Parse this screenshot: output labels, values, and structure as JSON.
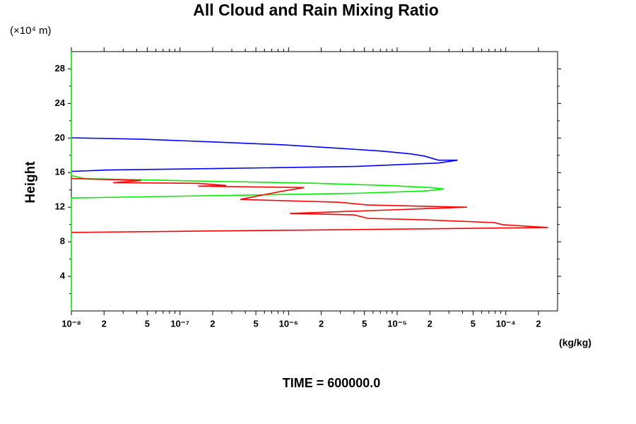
{
  "chart_data": {
    "type": "profile",
    "title": "All Cloud and Rain Mixing Ratio",
    "y_unit": "(×10⁴ m)",
    "ylabel": "Height",
    "x_unit": "(kg/kg)",
    "footer": "TIME = 600000.0",
    "xscale": "log",
    "xlim": [
      1e-08,
      0.0003
    ],
    "ylim": [
      0,
      30
    ],
    "xticks": [
      {
        "value": 1e-08,
        "label": "10⁻⁸"
      },
      {
        "value": 2e-08,
        "label": "2"
      },
      {
        "value": 5e-08,
        "label": "5"
      },
      {
        "value": 1e-07,
        "label": "10⁻⁷"
      },
      {
        "value": 2e-07,
        "label": "2"
      },
      {
        "value": 5e-07,
        "label": "5"
      },
      {
        "value": 1e-06,
        "label": "10⁻⁶"
      },
      {
        "value": 2e-06,
        "label": "2"
      },
      {
        "value": 5e-06,
        "label": "5"
      },
      {
        "value": 1e-05,
        "label": "10⁻⁵"
      },
      {
        "value": 2e-05,
        "label": "2"
      },
      {
        "value": 5e-05,
        "label": "5"
      },
      {
        "value": 0.0001,
        "label": "10⁻⁴"
      },
      {
        "value": 0.0002,
        "label": "2"
      }
    ],
    "xminorticks": [
      3e-08,
      4e-08,
      6e-08,
      7e-08,
      8e-08,
      9e-08,
      3e-07,
      4e-07,
      6e-07,
      7e-07,
      8e-07,
      9e-07,
      3e-06,
      4e-06,
      6e-06,
      7e-06,
      8e-06,
      9e-06,
      3e-05,
      4e-05,
      6e-05,
      7e-05,
      8e-05,
      9e-05
    ],
    "yticks": [
      4,
      8,
      12,
      16,
      20,
      24,
      28
    ],
    "yminorticks": [
      2,
      6,
      10,
      14,
      18,
      22,
      26
    ],
    "series": [
      {
        "color": "#0000ff",
        "x": [
          1e-08,
          4.4e-08,
          1.98e-07,
          8.9e-07,
          2.9e-06,
          7.2e-06,
          1.32e-05,
          1.78e-05,
          2.4e-05,
          3.6e-05,
          2.4e-05,
          4e-06,
          1.98e-07,
          2.1e-08,
          1e-08
        ],
        "y": [
          20.03,
          19.87,
          19.55,
          19.22,
          18.82,
          18.49,
          18.17,
          17.92,
          17.44,
          17.44,
          17.11,
          16.71,
          16.46,
          16.3,
          16.14
        ]
      },
      {
        "color": "#00ee00",
        "x": [
          1e-08,
          1e-08,
          1.33e-08,
          1.98e-07,
          1.87e-06,
          8.4e-06,
          2.07e-05,
          2.7e-05,
          1.78e-05,
          4e-06,
          4.2e-07,
          4.4e-08,
          1e-08,
          1e-08
        ],
        "y": [
          30,
          15.65,
          15.3,
          15.0,
          14.76,
          14.5,
          14.27,
          14.1,
          13.87,
          13.6,
          13.4,
          13.2,
          13.06,
          0
        ]
      },
      {
        "color": "#ff0000",
        "x": [
          1e-08,
          4.4e-08,
          2.42e-08,
          1.47e-07,
          2.67e-07,
          1.47e-07,
          1.39e-06,
          8.9e-07,
          3.6e-07,
          2.9e-06,
          5.4e-06,
          4.4e-05,
          1.03e-06,
          4e-06,
          5.4e-06,
          1.78e-05,
          7.9e-05,
          9.3e-05,
          0.000245,
          4e-06,
          1.98e-07,
          1e-08
        ],
        "y": [
          15.33,
          15.09,
          14.84,
          14.76,
          14.52,
          14.44,
          14.27,
          13.87,
          12.9,
          12.57,
          12.25,
          12.0,
          11.27,
          11.11,
          10.71,
          10.54,
          10.22,
          9.98,
          9.65,
          9.41,
          9.25,
          9.08
        ]
      }
    ]
  }
}
